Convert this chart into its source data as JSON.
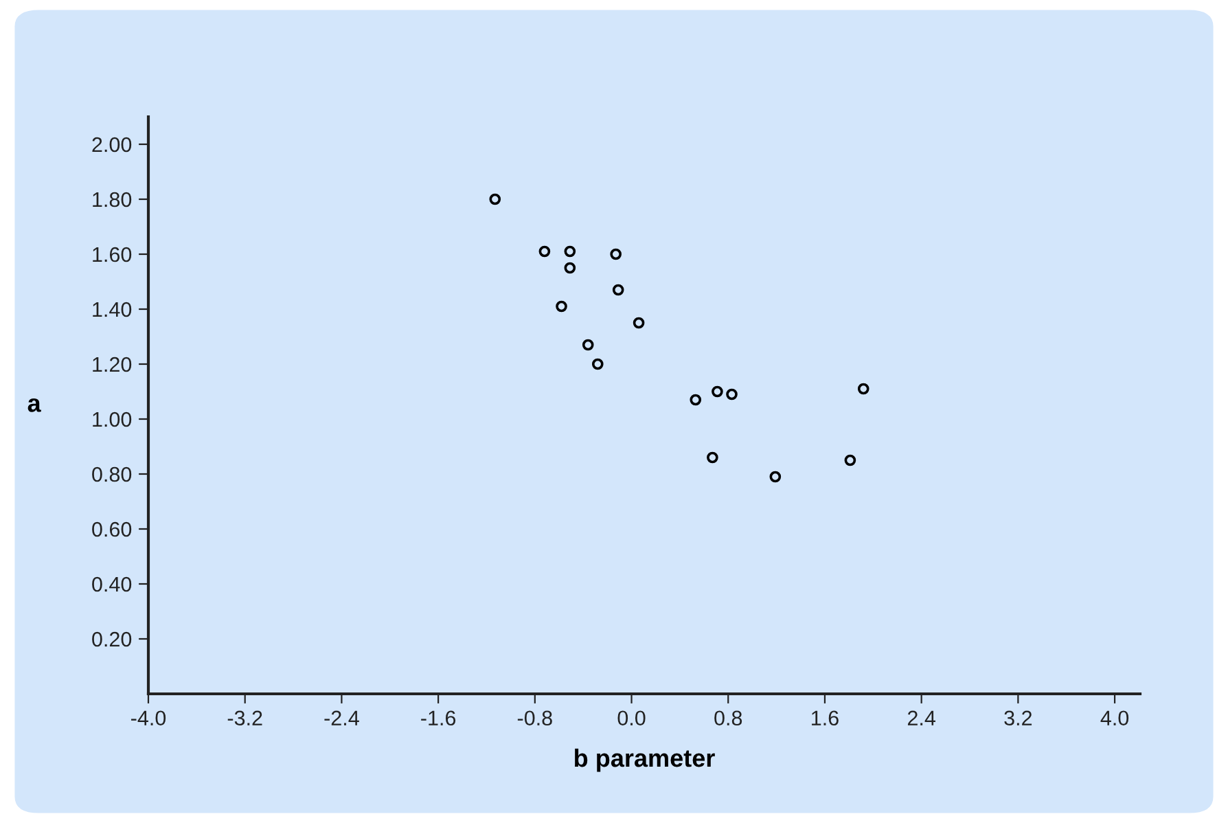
{
  "chart_data": {
    "type": "scatter",
    "xlabel": "b parameter",
    "ylabel": "a",
    "marker": "circle",
    "grid": false,
    "xlim": [
      -4.0,
      4.21
    ],
    "ylim": [
      0,
      2.1
    ],
    "xticks": [
      {
        "value": -4.0,
        "label": "-4.0"
      },
      {
        "value": -3.2,
        "label": "-3.2"
      },
      {
        "value": -2.4,
        "label": "-2.4"
      },
      {
        "value": -1.6,
        "label": "-1.6"
      },
      {
        "value": -0.8,
        "label": "-0.8"
      },
      {
        "value": 0.0,
        "label": "0.0"
      },
      {
        "value": 0.8,
        "label": "0.8"
      },
      {
        "value": 1.6,
        "label": "1.6"
      },
      {
        "value": 2.4,
        "label": "2.4"
      },
      {
        "value": 3.2,
        "label": "3.2"
      },
      {
        "value": 4.0,
        "label": "4.0"
      }
    ],
    "yticks": [
      {
        "value": 0.2,
        "label": "0.20"
      },
      {
        "value": 0.4,
        "label": "0.40"
      },
      {
        "value": 0.6,
        "label": "0.60"
      },
      {
        "value": 0.8,
        "label": "0.80"
      },
      {
        "value": 1.0,
        "label": "1.00"
      },
      {
        "value": 1.2,
        "label": "1.20"
      },
      {
        "value": 1.4,
        "label": "1.40"
      },
      {
        "value": 1.6,
        "label": "1.60"
      },
      {
        "value": 1.8,
        "label": "1.80"
      },
      {
        "value": 2.0,
        "label": "2.00"
      }
    ],
    "series": [
      {
        "color": "#000000",
        "x": [
          -1.13,
          -0.72,
          -0.51,
          -0.51,
          -0.13,
          -0.58,
          -0.11,
          0.06,
          -0.36,
          -0.28,
          0.53,
          0.71,
          0.83,
          1.92,
          0.67,
          1.19,
          1.81
        ],
        "values": [
          1.8,
          1.61,
          1.61,
          1.55,
          1.6,
          1.41,
          1.47,
          1.35,
          1.27,
          1.2,
          1.07,
          1.1,
          1.09,
          1.11,
          0.86,
          0.79,
          0.85
        ]
      }
    ]
  }
}
